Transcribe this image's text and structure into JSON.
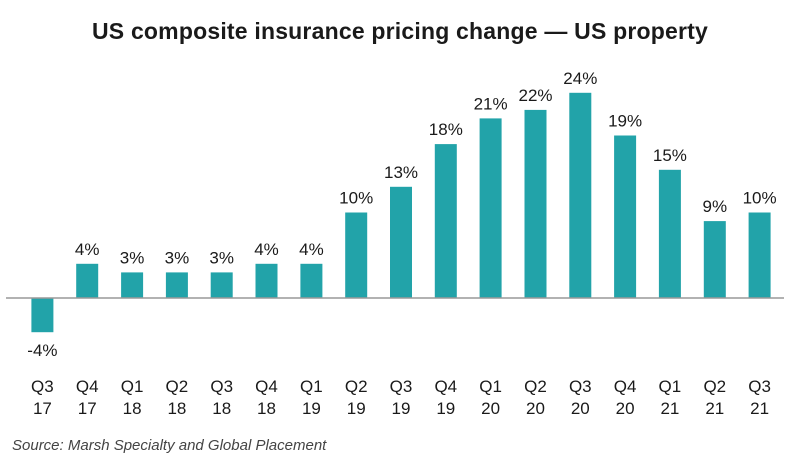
{
  "chart_data": {
    "type": "bar",
    "title": "US composite insurance pricing change — US property",
    "source": "Source: Marsh Specialty and Global Placement",
    "categories": [
      [
        "Q3",
        "17"
      ],
      [
        "Q4",
        "17"
      ],
      [
        "Q1",
        "18"
      ],
      [
        "Q2",
        "18"
      ],
      [
        "Q3",
        "18"
      ],
      [
        "Q4",
        "18"
      ],
      [
        "Q1",
        "19"
      ],
      [
        "Q2",
        "19"
      ],
      [
        "Q3",
        "19"
      ],
      [
        "Q4",
        "19"
      ],
      [
        "Q1",
        "20"
      ],
      [
        "Q2",
        "20"
      ],
      [
        "Q3",
        "20"
      ],
      [
        "Q4",
        "20"
      ],
      [
        "Q1",
        "21"
      ],
      [
        "Q2",
        "21"
      ],
      [
        "Q3",
        "21"
      ]
    ],
    "values": [
      -4,
      4,
      3,
      3,
      3,
      4,
      4,
      10,
      13,
      18,
      21,
      22,
      24,
      19,
      15,
      9,
      10
    ],
    "labels": [
      "-4%",
      "4%",
      "3%",
      "3%",
      "3%",
      "4%",
      "4%",
      "10%",
      "13%",
      "18%",
      "21%",
      "22%",
      "24%",
      "19%",
      "15%",
      "9%",
      "10%"
    ],
    "xlabel": "",
    "ylabel": "",
    "ylim": [
      -4,
      24
    ],
    "bar_color": "#22a3a9",
    "axis_color": "#999999",
    "grid": false,
    "legend": "none"
  }
}
